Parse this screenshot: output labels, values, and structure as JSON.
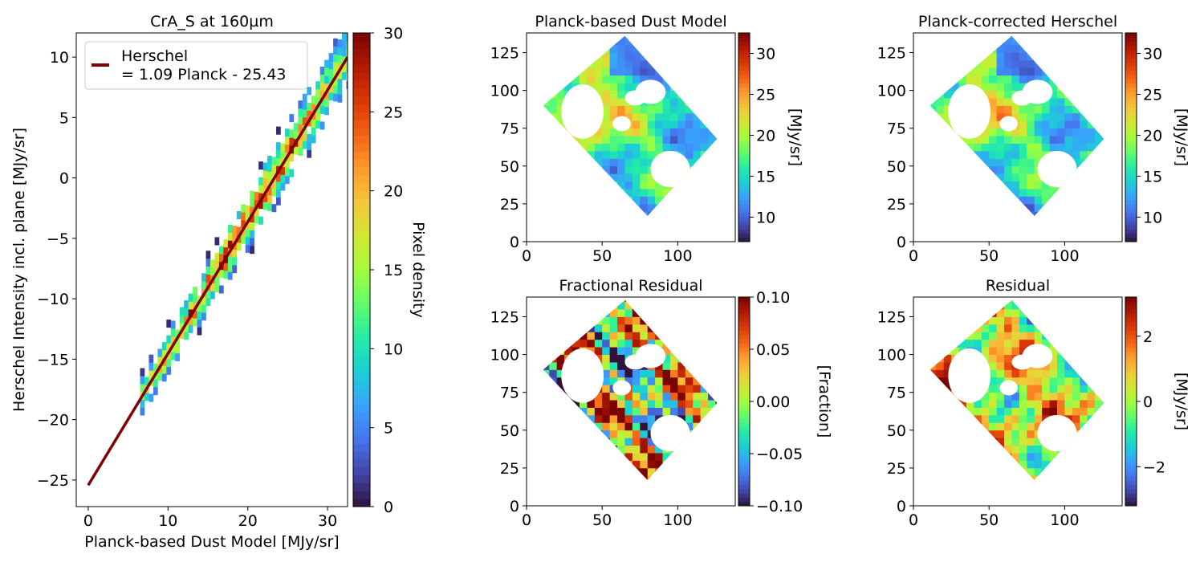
{
  "figure_title": "",
  "palette": [
    "#30123b",
    "#4145ab",
    "#4675ed",
    "#39a2fc",
    "#1bcfd4",
    "#24eca6",
    "#61fc6c",
    "#a4fc3b",
    "#d1e834",
    "#f3c63a",
    "#fe9b2d",
    "#f36315",
    "#d93806",
    "#b11901",
    "#7a0402"
  ],
  "fit_color": "#800000",
  "chart_data": [
    {
      "type": "heatmap",
      "title": "CrA_S at 160µm",
      "xlabel": "Planck-based Dust Model [MJy/sr]",
      "ylabel": "Herschel Intensity incl. plane [MJy/sr]",
      "xlim": [
        -1.5,
        32.5
      ],
      "ylim": [
        -27.2,
        12
      ],
      "xticks": [
        "0",
        "10",
        "20",
        "30"
      ],
      "yticks": [
        "−25",
        "−20",
        "−15",
        "−10",
        "−5",
        "0",
        "5",
        "10"
      ],
      "x_range_points": [
        6.5,
        32.5
      ],
      "fit": {
        "slope": 1.09,
        "intercept": -25.43,
        "x_start": 0,
        "x_end": 32.5
      },
      "legend": {
        "label_line1": "Herschel",
        "label_line2": "= 1.09 Planck - 25.43",
        "placement": "upper left"
      },
      "colorbar": {
        "label": "Pixel density",
        "min": 0,
        "max": 30,
        "ticks": [
          "0",
          "5",
          "10",
          "15",
          "20",
          "25",
          "30"
        ]
      }
    },
    {
      "type": "heatmap",
      "title": "Planck-based Dust Model",
      "xlim": [
        0,
        138
      ],
      "ylim": [
        0,
        138
      ],
      "xticks": [
        "0",
        "50",
        "100"
      ],
      "yticks": [
        "0",
        "25",
        "50",
        "75",
        "100",
        "125"
      ],
      "colorbar": {
        "label": "[MJy/sr]",
        "min": 7,
        "max": 32.5,
        "ticks": [
          "10",
          "15",
          "20",
          "25",
          "30"
        ]
      }
    },
    {
      "type": "heatmap",
      "title": "Planck-corrected Herschel",
      "xlim": [
        0,
        138
      ],
      "ylim": [
        0,
        138
      ],
      "xticks": [
        "0",
        "50",
        "100"
      ],
      "yticks": [
        "0",
        "25",
        "50",
        "75",
        "100",
        "125"
      ],
      "colorbar": {
        "label": "[MJy/sr]",
        "min": 7,
        "max": 32.5,
        "ticks": [
          "10",
          "15",
          "20",
          "25",
          "30"
        ]
      }
    },
    {
      "type": "heatmap",
      "title": "Fractional Residual",
      "xlim": [
        0,
        138
      ],
      "ylim": [
        0,
        138
      ],
      "xticks": [
        "0",
        "50",
        "100"
      ],
      "yticks": [
        "0",
        "25",
        "50",
        "75",
        "100",
        "125"
      ],
      "colorbar": {
        "label": "[Fraction]",
        "min": -0.1,
        "max": 0.1,
        "ticks": [
          "−0.10",
          "−0.05",
          "0.00",
          "0.05",
          "0.10"
        ]
      }
    },
    {
      "type": "heatmap",
      "title": "Residual",
      "xlim": [
        0,
        138
      ],
      "ylim": [
        0,
        138
      ],
      "xticks": [
        "0",
        "50",
        "100"
      ],
      "yticks": [
        "0",
        "25",
        "50",
        "75",
        "100",
        "125"
      ],
      "colorbar": {
        "label": "[MJy/sr]",
        "min": -3.2,
        "max": 3.2,
        "ticks": [
          "−2",
          "0",
          "2"
        ]
      }
    }
  ]
}
